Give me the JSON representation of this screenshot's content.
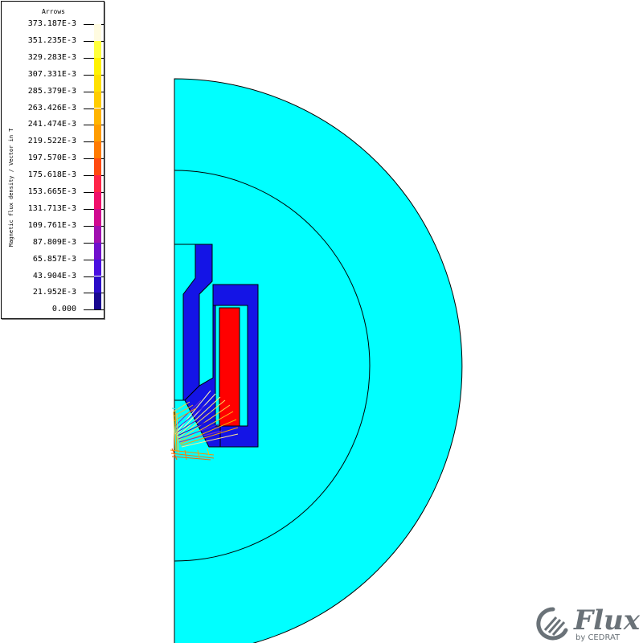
{
  "legend": {
    "title": "Arrows",
    "axis_label": "Magnetic flux density / Vector in T",
    "ticks": [
      {
        "label": "373.187E-3",
        "color": "#fffbe0"
      },
      {
        "label": "351.235E-3",
        "color": "#ffff3c"
      },
      {
        "label": "329.283E-3",
        "color": "#fff200"
      },
      {
        "label": "307.331E-3",
        "color": "#ffe000"
      },
      {
        "label": "285.379E-3",
        "color": "#ffcc00"
      },
      {
        "label": "263.426E-3",
        "color": "#ffb400"
      },
      {
        "label": "241.474E-3",
        "color": "#ff9c00"
      },
      {
        "label": "219.522E-3",
        "color": "#ff7a00"
      },
      {
        "label": "197.570E-3",
        "color": "#ff4a10"
      },
      {
        "label": "175.618E-3",
        "color": "#ff2448"
      },
      {
        "label": "153.665E-3",
        "color": "#f0106a"
      },
      {
        "label": "131.713E-3",
        "color": "#d00a90"
      },
      {
        "label": "109.761E-3",
        "color": "#a010b0"
      },
      {
        "label": "87.809E-3",
        "color": "#7010cc"
      },
      {
        "label": "65.857E-3",
        "color": "#4a10e0"
      },
      {
        "label": "43.904E-3",
        "color": "#2a0cc8"
      },
      {
        "label": "21.952E-3",
        "color": "#180890"
      },
      {
        "label": "0.000",
        "color": "#0c0660"
      }
    ]
  },
  "colors": {
    "air": "#00ffff",
    "iron": "#1414e6",
    "coil": "#ff0000",
    "outline": "#000000"
  },
  "logo": {
    "word": "Flux",
    "sub": "by CEDRAT"
  }
}
